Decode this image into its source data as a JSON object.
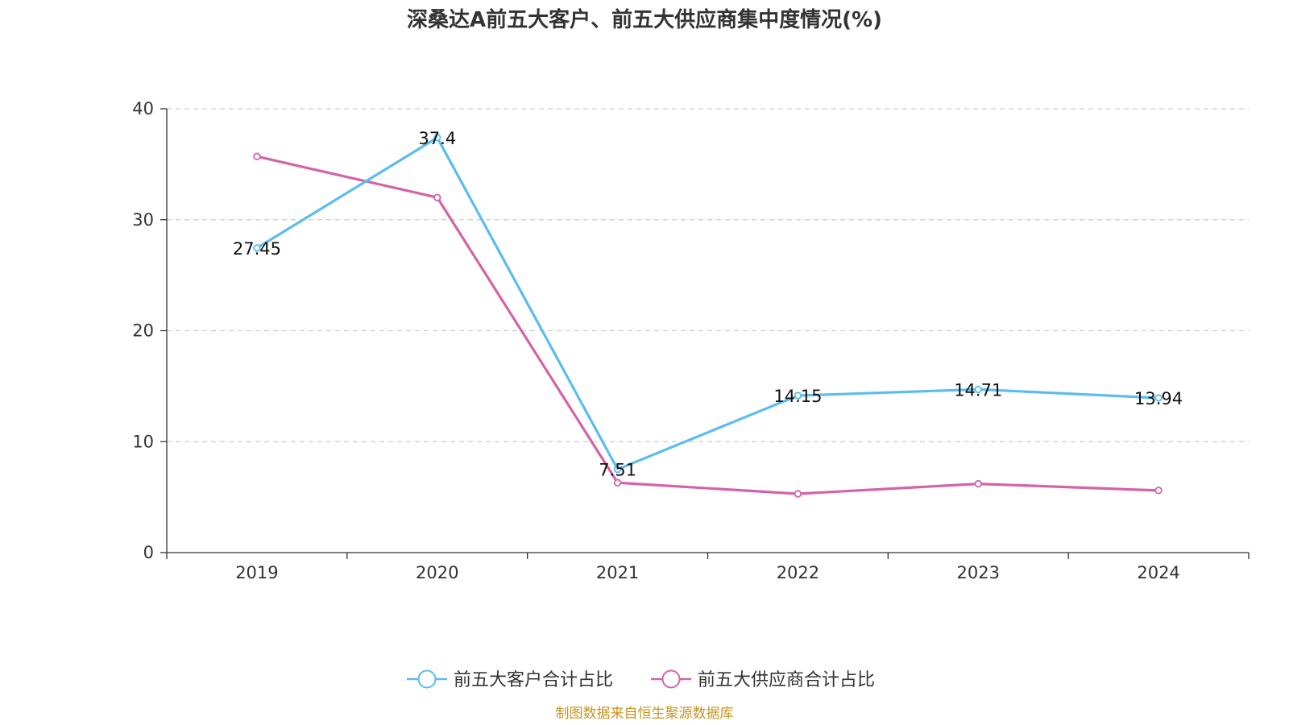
{
  "chart_data": {
    "type": "line",
    "title": "深桑达A前五大客户、前五大供应商集中度情况(%)",
    "xlabel": "",
    "ylabel": "",
    "categories": [
      "2019",
      "2020",
      "2021",
      "2022",
      "2023",
      "2024"
    ],
    "ylim": [
      0,
      40
    ],
    "yticks": [
      0,
      10,
      20,
      30,
      40
    ],
    "grid": "horizontal-dashed",
    "legend_position": "bottom-center",
    "series": [
      {
        "name": "前五大客户合计占比",
        "color": "#5bbcf0",
        "values": [
          27.45,
          37.4,
          7.51,
          14.15,
          14.71,
          13.94
        ],
        "labels": [
          "27.45",
          "37.4",
          "7.51",
          "14.15",
          "14.71",
          "13.94"
        ]
      },
      {
        "name": "前五大供应商合计占比",
        "color": "#d462a8",
        "values": [
          35.7,
          32.0,
          6.3,
          5.3,
          6.2,
          5.6
        ],
        "labels": []
      }
    ]
  },
  "source_note": "制图数据来自恒生聚源数据库"
}
